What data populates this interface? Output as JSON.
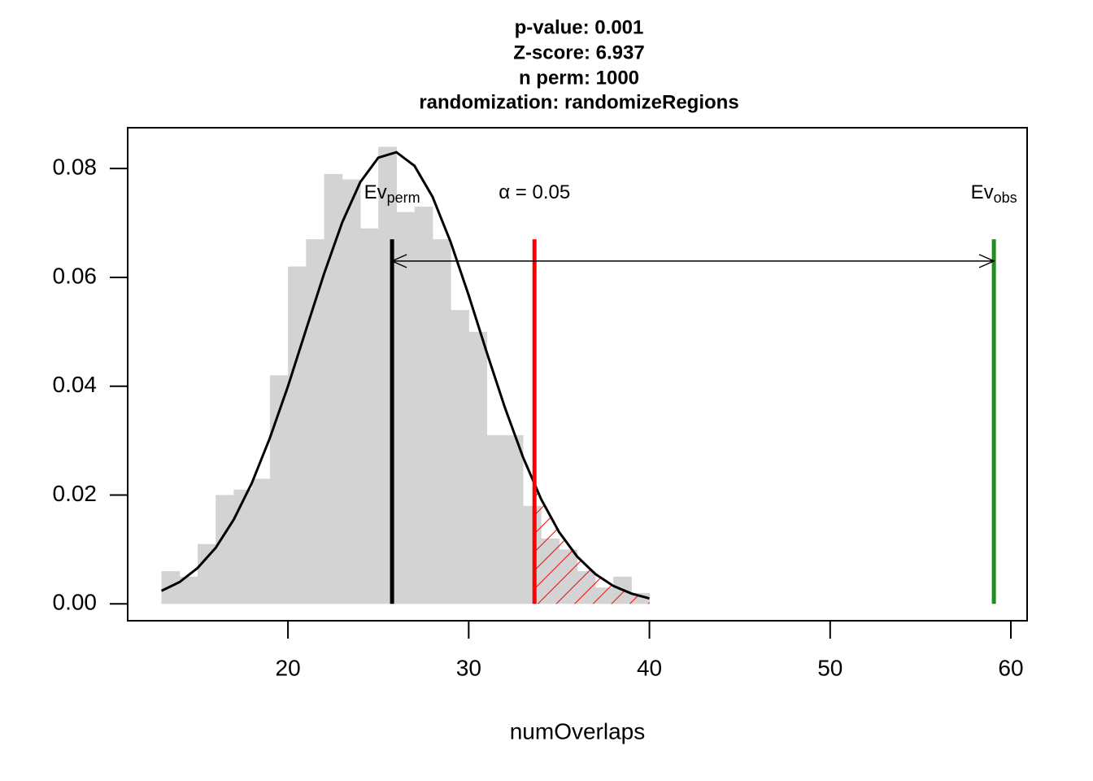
{
  "chart_data": {
    "type": "histogram",
    "title": [
      "p-value:  0.001",
      "Z-score:  6.937",
      "n perm:  1000",
      "randomization:  randomizeRegions"
    ],
    "xlabel": "numOverlaps",
    "bins": [
      13,
      14,
      15,
      16,
      17,
      18,
      19,
      20,
      21,
      22,
      23,
      24,
      25,
      26,
      27,
      28,
      29,
      30,
      31,
      32,
      33,
      34,
      35,
      36,
      37,
      38,
      39,
      40
    ],
    "values": [
      0.006,
      0.005,
      0.011,
      0.02,
      0.021,
      0.023,
      0.042,
      0.062,
      0.067,
      0.079,
      0.078,
      0.069,
      0.084,
      0.072,
      0.073,
      0.067,
      0.054,
      0.05,
      0.031,
      0.031,
      0.018,
      0.012,
      0.01,
      0.006,
      0.003,
      0.005,
      0.002
    ],
    "color": "#d3d3d3",
    "density": {
      "x": [
        13,
        14,
        15,
        16,
        17,
        18,
        19,
        20,
        21,
        22,
        23,
        24,
        25,
        26,
        27,
        28,
        29,
        30,
        31,
        32,
        33,
        34,
        35,
        36,
        37,
        38,
        39,
        40
      ],
      "values": [
        0.0024,
        0.004,
        0.0066,
        0.0103,
        0.0155,
        0.0222,
        0.0305,
        0.04,
        0.0504,
        0.0607,
        0.0701,
        0.0775,
        0.082,
        0.083,
        0.0805,
        0.0748,
        0.0665,
        0.0567,
        0.0462,
        0.0361,
        0.027,
        0.0193,
        0.0132,
        0.0087,
        0.0055,
        0.0033,
        0.0019,
        0.001
      ],
      "color": "#000000"
    },
    "vlines": [
      {
        "x": 25.76,
        "ymax": 0.067,
        "color": "#000000",
        "label": "Ev",
        "sub": "perm"
      },
      {
        "x": 33.64,
        "ymax": 0.067,
        "color": "#ff0000",
        "label": "α = 0.05"
      },
      {
        "x": 59.06,
        "ymax": 0.067,
        "color": "#228b22",
        "label": "Ev",
        "sub": "obs"
      }
    ],
    "arrow": {
      "from": 25.76,
      "to": 59.06,
      "y": 0.063
    },
    "tail_color": "#ff0000",
    "xlim": [
      11.13,
      60.9
    ],
    "ylim": [
      -0.0031,
      0.0875
    ],
    "xticks": [
      20,
      30,
      40,
      50,
      60
    ],
    "yticks": [
      {
        "value": 0,
        "label": "0.00"
      },
      0.02,
      0.04,
      0.06,
      0.08
    ]
  }
}
